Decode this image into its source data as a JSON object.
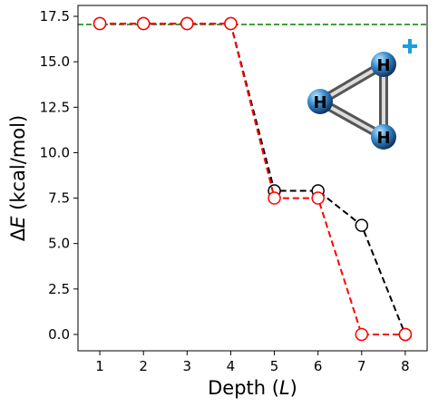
{
  "chart_data": {
    "type": "line",
    "xlabel": "Depth (L)",
    "ylabel": "ΔE (kcal/mol)",
    "x": [
      1,
      2,
      3,
      4,
      5,
      6,
      7,
      8
    ],
    "xlim": [
      0.5,
      8.5
    ],
    "ylim": [
      -0.9,
      18.1
    ],
    "yticks": [
      "0.0",
      "2.5",
      "5.0",
      "7.5",
      "10.0",
      "12.5",
      "15.0",
      "17.5"
    ],
    "series": [
      {
        "color": "#000000",
        "style": "dashed",
        "marker": "open-circle",
        "values": [
          17.1,
          17.1,
          17.1,
          17.1,
          7.9,
          7.9,
          6.0,
          0.0
        ]
      },
      {
        "color": "#ff0000",
        "style": "dashed",
        "marker": "open-circle",
        "values": [
          17.1,
          17.1,
          17.1,
          17.1,
          7.5,
          7.5,
          0.0,
          0.0
        ]
      }
    ],
    "reference_line": {
      "y": 17.05,
      "color": "#008000",
      "style": "dashed"
    },
    "inset": {
      "molecule": "H3+ triangle",
      "atoms": [
        "H",
        "H",
        "H"
      ],
      "charge": "+",
      "atom_color": "#3a8fd0",
      "charge_color": "#1a9ee0"
    },
    "grid": false
  }
}
